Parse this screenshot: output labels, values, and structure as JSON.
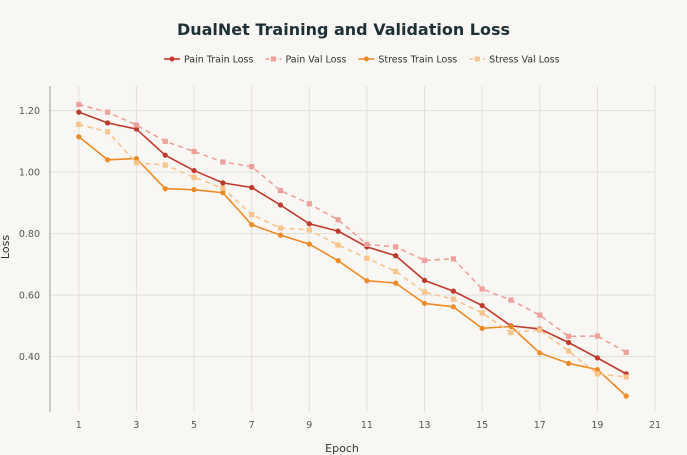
{
  "chart_data": {
    "type": "line",
    "title": "DualNet Training and Validation Loss",
    "xlabel": "Epoch",
    "ylabel": "Loss",
    "xlim": [
      0,
      21
    ],
    "ylim": [
      0.22,
      1.28
    ],
    "xticks": [
      1,
      3,
      5,
      7,
      9,
      11,
      13,
      15,
      17,
      19,
      21
    ],
    "yticks": [
      0.4,
      0.6,
      0.8,
      1.0,
      1.2
    ],
    "ytick_labels": [
      "0.40",
      "0.60",
      "0.80",
      "1.00",
      "1.20"
    ],
    "grid": true,
    "legend_position": "top",
    "x": [
      1,
      2,
      3,
      4,
      5,
      6,
      7,
      8,
      9,
      10,
      11,
      12,
      13,
      14,
      15,
      16,
      17,
      18,
      19,
      20
    ],
    "series": [
      {
        "name": "Pain Train Loss",
        "color": "#c0392b",
        "dash": false,
        "marker": "circle",
        "values": [
          1.195,
          1.16,
          1.14,
          1.055,
          1.005,
          0.965,
          0.95,
          0.893,
          0.832,
          0.808,
          0.757,
          0.728,
          0.648,
          0.613,
          0.566,
          0.5,
          0.49,
          0.446,
          0.396,
          0.344
        ]
      },
      {
        "name": "Pain Val Loss",
        "color": "#f0a09a",
        "dash": true,
        "marker": "square",
        "values": [
          1.22,
          1.195,
          1.153,
          1.1,
          1.067,
          1.033,
          1.018,
          0.94,
          0.897,
          0.845,
          0.765,
          0.757,
          0.713,
          0.718,
          0.62,
          0.584,
          0.535,
          0.466,
          0.467,
          0.414
        ]
      },
      {
        "name": "Stress Train Loss",
        "color": "#f08a24",
        "dash": false,
        "marker": "circle",
        "values": [
          1.115,
          1.04,
          1.044,
          0.946,
          0.943,
          0.933,
          0.829,
          0.795,
          0.766,
          0.712,
          0.647,
          0.639,
          0.573,
          0.562,
          0.492,
          0.498,
          0.412,
          0.378,
          0.358,
          0.272
        ]
      },
      {
        "name": "Stress Val Loss",
        "color": "#f9c48a",
        "dash": true,
        "marker": "square",
        "values": [
          1.155,
          1.131,
          1.03,
          1.023,
          0.983,
          0.948,
          0.862,
          0.818,
          0.812,
          0.763,
          0.72,
          0.677,
          0.61,
          0.587,
          0.542,
          0.478,
          0.487,
          0.418,
          0.344,
          0.334
        ]
      }
    ]
  }
}
